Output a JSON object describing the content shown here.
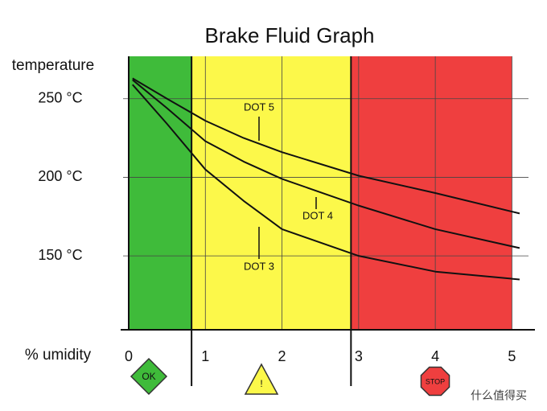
{
  "chart_data": {
    "type": "line",
    "title": "Brake Fluid Graph",
    "y_label": "temperature",
    "x_label": "% umidity",
    "x": [
      0.05,
      0.5,
      1,
      1.5,
      2,
      3,
      4,
      5.1
    ],
    "series": [
      {
        "name": "DOT 5",
        "color": "#111111",
        "values": [
          263,
          250,
          236,
          225,
          216,
          201,
          190,
          177
        ]
      },
      {
        "name": "DOT 4",
        "color": "#111111",
        "values": [
          262,
          244,
          223,
          210,
          199,
          182,
          167,
          155
        ]
      },
      {
        "name": "DOT 3",
        "color": "#111111",
        "values": [
          259,
          234,
          205,
          185,
          167,
          150,
          140,
          135
        ]
      }
    ],
    "xlim": [
      0,
      5.3
    ],
    "ylim": [
      103,
      277
    ],
    "xticks": [
      0,
      1,
      2,
      3,
      4,
      5
    ],
    "yticks": [
      {
        "value": 150,
        "label": "150 °C"
      },
      {
        "value": 200,
        "label": "200 °C"
      },
      {
        "value": 250,
        "label": "250 °C"
      }
    ],
    "grid": true,
    "zones": [
      {
        "from": 0,
        "to": 0.82,
        "color": "#3fbb3a",
        "sign": "OK"
      },
      {
        "from": 0.82,
        "to": 2.9,
        "color": "#fcf84a",
        "sign": "!"
      },
      {
        "from": 2.9,
        "to": 5,
        "color": "#ef3f3f",
        "sign": "STOP"
      }
    ],
    "watermark": "什么值得买"
  }
}
